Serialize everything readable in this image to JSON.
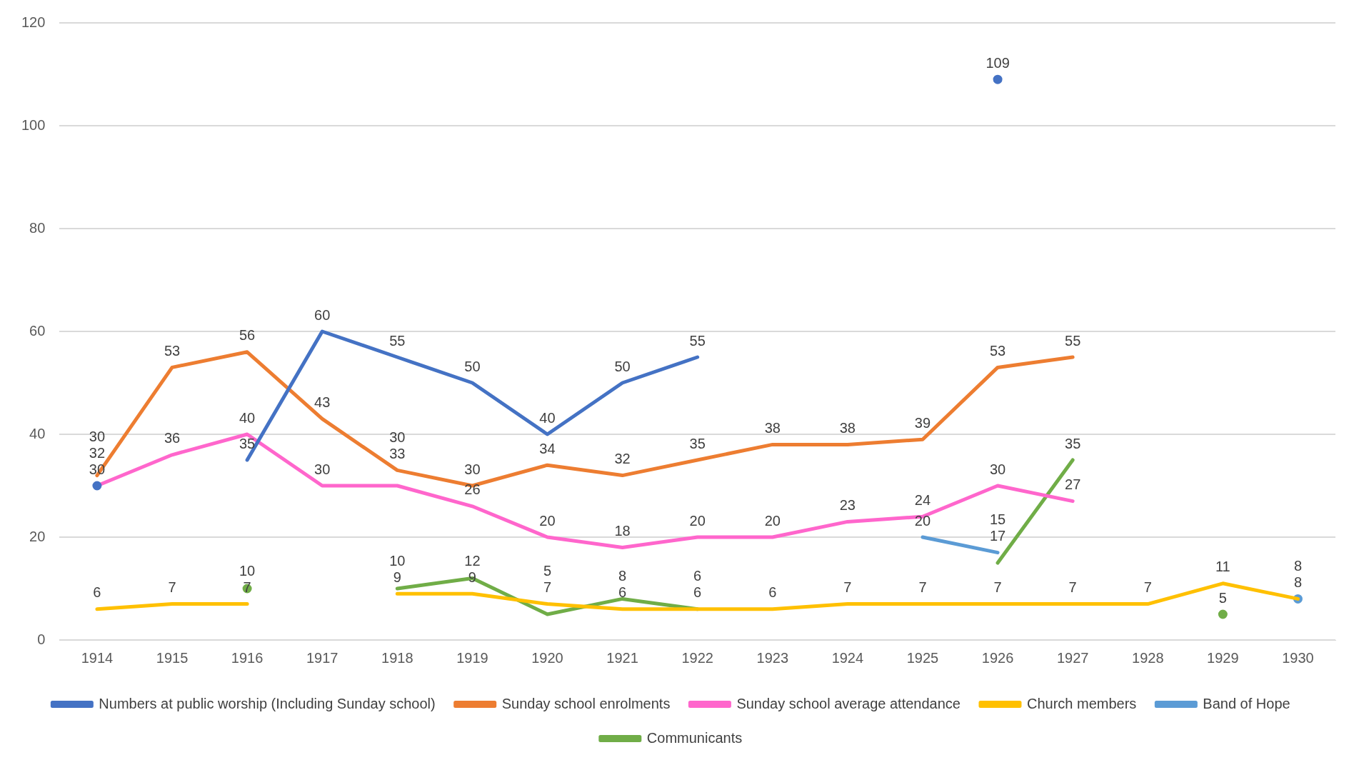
{
  "chart_data": {
    "type": "line",
    "categories": [
      "1914",
      "1915",
      "1916",
      "1917",
      "1918",
      "1919",
      "1920",
      "1921",
      "1922",
      "1923",
      "1924",
      "1925",
      "1926",
      "1927",
      "1928",
      "1929",
      "1930"
    ],
    "series": [
      {
        "name": "Numbers at public worship (Including Sunday school)",
        "color": "#4472c4",
        "values": [
          30,
          null,
          35,
          60,
          55,
          50,
          40,
          50,
          55,
          null,
          null,
          null,
          109,
          null,
          null,
          null,
          null
        ]
      },
      {
        "name": "Sunday school enrolments",
        "color": "#ed7d31",
        "values": [
          32,
          53,
          56,
          43,
          33,
          30,
          34,
          32,
          35,
          38,
          38,
          39,
          53,
          55,
          null,
          null,
          null
        ]
      },
      {
        "name": "Sunday school average attendance",
        "color": "#ff66cc",
        "values": [
          30,
          36,
          40,
          30,
          30,
          26,
          20,
          18,
          20,
          20,
          23,
          24,
          30,
          27,
          null,
          null,
          null
        ]
      },
      {
        "name": "Church members",
        "color": "#ffc000",
        "values": [
          6,
          7,
          7,
          null,
          9,
          9,
          7,
          6,
          6,
          6,
          7,
          7,
          7,
          7,
          7,
          11,
          8
        ]
      },
      {
        "name": "Band of Hope",
        "color": "#5b9bd5",
        "values": [
          null,
          null,
          null,
          null,
          null,
          null,
          null,
          null,
          null,
          null,
          null,
          20,
          17,
          null,
          null,
          null,
          8
        ]
      },
      {
        "name": "Communicants",
        "color": "#70ad47",
        "values": [
          null,
          null,
          10,
          null,
          10,
          12,
          5,
          8,
          6,
          null,
          null,
          null,
          15,
          35,
          null,
          5,
          null
        ]
      }
    ],
    "ylim": [
      0,
      120
    ],
    "yticks": [
      0,
      20,
      40,
      60,
      80,
      100,
      120
    ],
    "grid": "y",
    "legend": "bottom",
    "data_labels": true,
    "marker": "none",
    "line_style": "solid"
  }
}
